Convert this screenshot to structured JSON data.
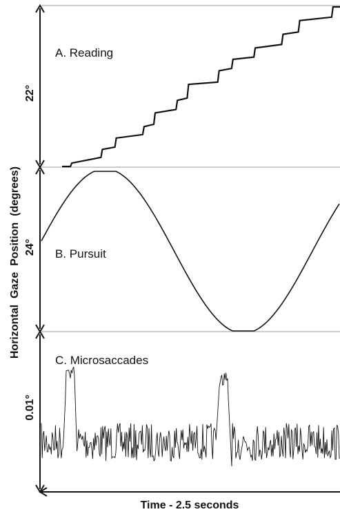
{
  "chart_data": [
    {
      "type": "line",
      "panel": "A",
      "title": "A. Reading",
      "scale_label": "22°",
      "scale_span_deg": 22,
      "series": [
        {
          "x": [
            0.0,
            0.03,
            0.035,
            0.14,
            0.145,
            0.19,
            0.195,
            0.29,
            0.295,
            0.33,
            0.335,
            0.41,
            0.415,
            0.45,
            0.455,
            0.56,
            0.565,
            0.61,
            0.615,
            0.69,
            0.695,
            0.79,
            0.795,
            0.85,
            0.855,
            0.97,
            0.975,
            1.0
          ],
          "y": [
            0.0,
            0.0,
            0.03,
            0.08,
            0.15,
            0.17,
            0.25,
            0.28,
            0.35,
            0.37,
            0.47,
            0.5,
            0.58,
            0.6,
            0.72,
            0.74,
            0.84,
            0.86,
            0.94,
            0.96,
            1.04,
            1.07,
            1.16,
            1.18,
            1.28,
            1.31,
            1.4,
            1.4
          ]
        }
      ]
    },
    {
      "type": "line",
      "panel": "B",
      "title": "B. Pursuit",
      "scale_label": "24°",
      "scale_span_deg": 24
    },
    {
      "type": "line",
      "panel": "C",
      "title": "C. Microsaccades",
      "scale_label": "0.01°",
      "scale_span_deg": 0.01
    }
  ],
  "y_axis_title": "Horizontal  Gaze  Position  (degrees)",
  "x_axis_title": "Time - 2.5 seconds"
}
